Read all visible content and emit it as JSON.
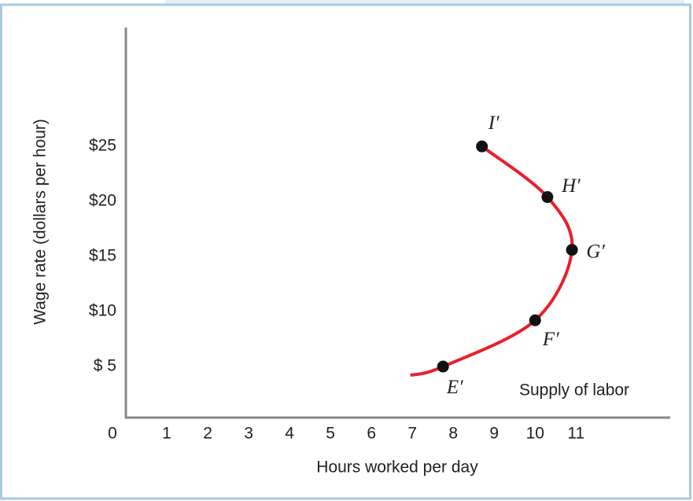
{
  "chart_data": {
    "type": "line",
    "xlabel": "Hours worked per day",
    "ylabel": "Wage rate (dollars per hour)",
    "annotation": "Supply of labor",
    "xlim": [
      0,
      13.3
    ],
    "ylim": [
      0,
      35.8
    ],
    "xticks": [
      0,
      1,
      2,
      3,
      4,
      5,
      6,
      7,
      8,
      9,
      10,
      11
    ],
    "yticks": [
      {
        "value": 5,
        "label": "$ 5"
      },
      {
        "value": 10,
        "label": "$10"
      },
      {
        "value": 15,
        "label": "$15"
      },
      {
        "value": 20,
        "label": "$20"
      },
      {
        "value": 25,
        "label": "$25"
      }
    ],
    "grid": false,
    "series": [
      {
        "name": "Supply of labor",
        "color": "#e8202a",
        "x": [
          6.95,
          7.75,
          10,
          10.9,
          10.3,
          8.7
        ],
        "values": [
          4.2,
          5,
          9.2,
          15.6,
          20.4,
          25
        ],
        "point_labels": [
          null,
          "E′",
          "F′",
          "G′",
          "H′",
          "I′"
        ]
      }
    ]
  }
}
